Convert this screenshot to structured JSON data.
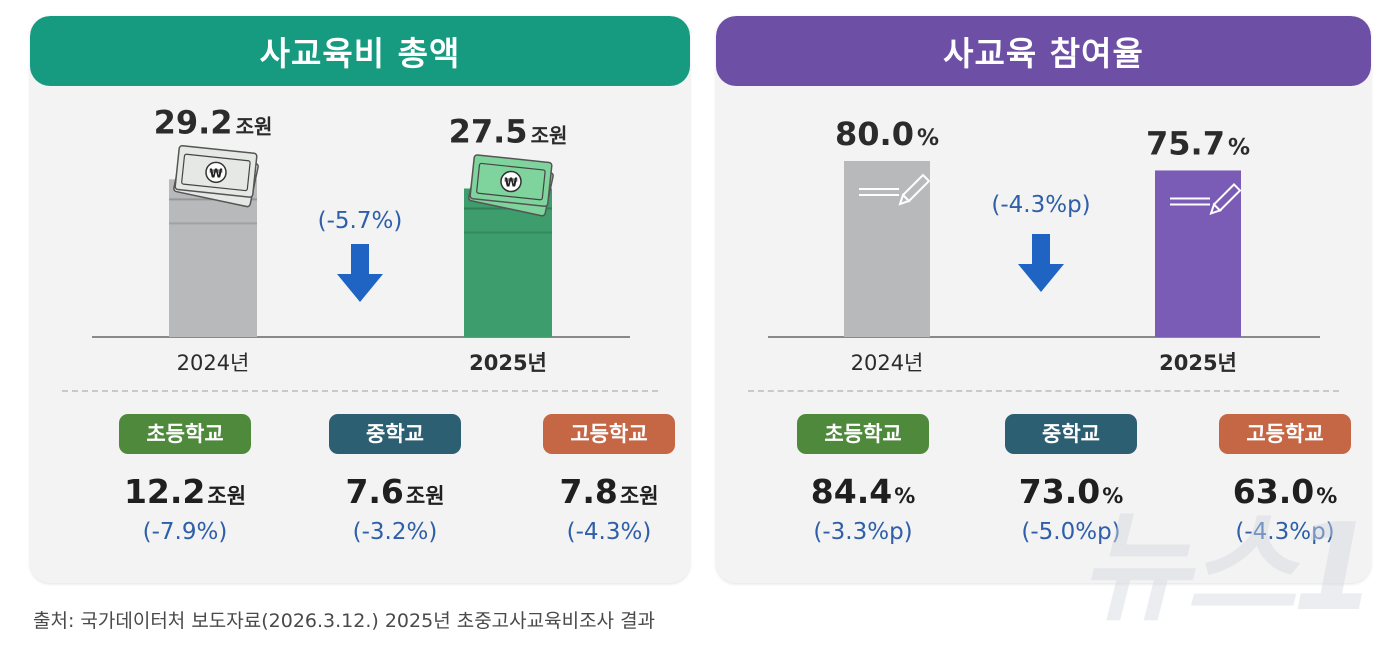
{
  "colors": {
    "teal_header": "#169b80",
    "purple_header": "#6e4fa6",
    "gray_bar": "#b7b9bb",
    "green_bar": "#3e9d6c",
    "purple_bar": "#7a5bb5",
    "arrow_blue": "#1f63c3",
    "change_text": "#2e5fa8",
    "badge_elementary": "#4f8a3c",
    "badge_middle": "#2d5f73",
    "badge_high": "#c56645"
  },
  "left_panel": {
    "title": "사교육비 총액",
    "change": "(-5.7%)",
    "schools": [
      {
        "badge": "초등학교",
        "value": "12.2",
        "unit": "조원",
        "change": "(-7.9%)"
      },
      {
        "badge": "중학교",
        "value": "7.6",
        "unit": "조원",
        "change": "(-3.2%)"
      },
      {
        "badge": "고등학교",
        "value": "7.8",
        "unit": "조원",
        "change": "(-4.3%)"
      }
    ]
  },
  "right_panel": {
    "title": "사교육 참여율",
    "change": "(-4.3%p)",
    "schools": [
      {
        "badge": "초등학교",
        "value": "84.4",
        "unit": "%",
        "change": "(-3.3%p)"
      },
      {
        "badge": "중학교",
        "value": "73.0",
        "unit": "%",
        "change": "(-5.0%p)"
      },
      {
        "badge": "고등학교",
        "value": "63.0",
        "unit": "%",
        "change": "(-4.3%p)"
      }
    ]
  },
  "chart_data": [
    {
      "type": "bar",
      "title": "사교육비 총액",
      "categories": [
        "2024년",
        "2025년"
      ],
      "values": [
        29.2,
        27.5
      ],
      "value_labels": [
        "29.2",
        "27.5"
      ],
      "unit": "조원",
      "icon": "money-icon"
    },
    {
      "type": "bar",
      "title": "사교육 참여율",
      "categories": [
        "2024년",
        "2025년"
      ],
      "values": [
        80.0,
        75.7
      ],
      "value_labels": [
        "80.0",
        "75.7"
      ],
      "unit": "%",
      "icon": "pencil-icon"
    }
  ],
  "source": "출처: 국가데이터처 보도자료(2026.3.12.) 2025년 초중고사교육비조사 결과",
  "watermark": "뉴스1"
}
